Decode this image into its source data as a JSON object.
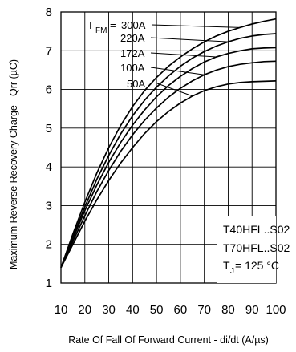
{
  "chart_data": {
    "type": "line",
    "title": "",
    "xlabel": "Rate Of Fall Of Forward Current - di/dt (A/µs)",
    "ylabel": "Maximum Reverse Recovery Charge - Qrr (µC)",
    "xlim": [
      10,
      100
    ],
    "ylim": [
      1,
      8
    ],
    "xticks": [
      10,
      20,
      30,
      40,
      50,
      60,
      70,
      80,
      90,
      100
    ],
    "yticks": [
      1,
      2,
      3,
      4,
      5,
      6,
      7,
      8
    ],
    "grid": true,
    "x": [
      10,
      15,
      20,
      25,
      30,
      35,
      40,
      45,
      50,
      55,
      60,
      65,
      70,
      75,
      80,
      85,
      90,
      95,
      100
    ],
    "series": [
      {
        "name": "300A",
        "values": [
          1.4,
          2.27,
          3.09,
          3.84,
          4.5,
          5.07,
          5.56,
          5.97,
          6.31,
          6.6,
          6.84,
          7.05,
          7.23,
          7.38,
          7.5,
          7.6,
          7.69,
          7.76,
          7.82
        ]
      },
      {
        "name": "220A",
        "values": [
          1.4,
          2.2,
          2.97,
          3.68,
          4.3,
          4.85,
          5.32,
          5.72,
          6.06,
          6.35,
          6.6,
          6.81,
          6.98,
          7.12,
          7.23,
          7.32,
          7.38,
          7.42,
          7.44
        ]
      },
      {
        "name": "172A",
        "values": [
          1.4,
          2.15,
          2.87,
          3.53,
          4.12,
          4.63,
          5.08,
          5.47,
          5.81,
          6.1,
          6.34,
          6.54,
          6.71,
          6.84,
          6.93,
          7.0,
          7.05,
          7.07,
          7.08
        ]
      },
      {
        "name": "100A",
        "values": [
          1.4,
          2.08,
          2.74,
          3.36,
          3.91,
          4.4,
          4.83,
          5.2,
          5.52,
          5.8,
          6.03,
          6.22,
          6.38,
          6.5,
          6.59,
          6.65,
          6.69,
          6.72,
          6.73
        ]
      },
      {
        "name": "50A",
        "values": [
          1.4,
          2.0,
          2.6,
          3.15,
          3.65,
          4.1,
          4.5,
          4.86,
          5.17,
          5.43,
          5.65,
          5.83,
          5.97,
          6.07,
          6.14,
          6.18,
          6.2,
          6.21,
          6.22
        ]
      }
    ],
    "annotations": {
      "current_prefix": "I",
      "current_subscript": "FM",
      "current_equals": "= ",
      "condition_line1": "T40HFL..S02",
      "condition_line2": "T70HFL..S02",
      "tj_prefix": "T",
      "tj_subscript": "J",
      "tj_value": " = 125 °C"
    }
  }
}
